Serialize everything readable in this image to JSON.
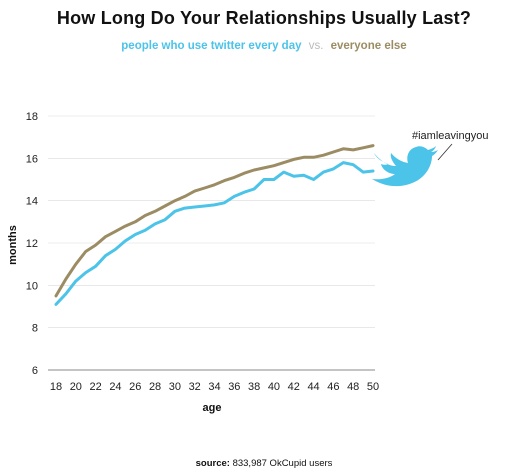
{
  "chart_data": {
    "type": "line",
    "title": "How Long Do Your Relationships Usually Last?",
    "ylabel": "months",
    "xlabel": "age",
    "xlim": [
      18,
      50
    ],
    "ylim": [
      6,
      18
    ],
    "x_ticks": [
      18,
      20,
      22,
      24,
      26,
      28,
      30,
      32,
      34,
      36,
      38,
      40,
      42,
      44,
      46,
      48,
      50
    ],
    "y_ticks": [
      6,
      8,
      10,
      12,
      14,
      16,
      18
    ],
    "grid": "horizontal",
    "legend_placement": "top-center",
    "x": [
      18,
      19,
      20,
      21,
      22,
      23,
      24,
      25,
      26,
      27,
      28,
      29,
      30,
      31,
      32,
      33,
      34,
      35,
      36,
      37,
      38,
      39,
      40,
      41,
      42,
      43,
      44,
      45,
      46,
      47,
      48,
      49,
      50
    ],
    "series": [
      {
        "name": "people who use twitter every day",
        "color": "#4cc3e8",
        "values": [
          9.1,
          9.6,
          10.2,
          10.6,
          10.9,
          11.4,
          11.7,
          12.1,
          12.4,
          12.6,
          12.9,
          13.1,
          13.5,
          13.65,
          13.7,
          13.75,
          13.8,
          13.9,
          14.2,
          14.4,
          14.55,
          15.0,
          15.0,
          15.35,
          15.15,
          15.2,
          15.0,
          15.35,
          15.5,
          15.8,
          15.7,
          15.35,
          15.4
        ]
      },
      {
        "name": "everyone else",
        "color": "#9c8c63",
        "values": [
          9.5,
          10.3,
          11.0,
          11.6,
          11.9,
          12.3,
          12.55,
          12.8,
          13.0,
          13.3,
          13.5,
          13.75,
          14.0,
          14.2,
          14.45,
          14.6,
          14.75,
          14.95,
          15.1,
          15.3,
          15.45,
          15.55,
          15.65,
          15.8,
          15.95,
          16.05,
          16.05,
          16.15,
          16.3,
          16.45,
          16.4,
          16.5,
          16.6
        ]
      }
    ],
    "annotation": "#iamleavingyou",
    "vs_label": "vs.",
    "source_label": "source:",
    "source_text": "833,987 OkCupid users"
  },
  "colors": {
    "twitter_bird": "#4cc3e8",
    "gridline": "#d9d9d9",
    "axis": "#888888"
  },
  "icons": {
    "annotation_icon": "twitter-bird-icon"
  }
}
